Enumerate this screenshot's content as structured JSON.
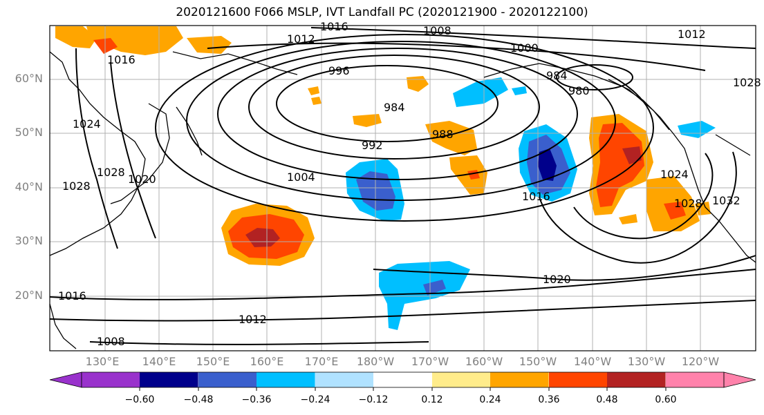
{
  "title": "2020121600 F066 MSLP, IVT Landfall PC (2020121900 - 2020122100)",
  "lat_labels": [
    "60°N",
    "50°N",
    "40°N",
    "30°N",
    "20°N"
  ],
  "lon_labels": [
    "130°E",
    "140°E",
    "150°E",
    "160°E",
    "170°E",
    "180°W",
    "170°W",
    "160°W",
    "150°W",
    "140°W",
    "130°W",
    "120°W"
  ],
  "contour_labels": [
    "1012",
    "1016",
    "1008",
    "1000",
    "1012",
    "996",
    "984",
    "980",
    "984",
    "988",
    "992",
    "1004",
    "1024",
    "1028",
    "1020",
    "1016",
    "1024",
    "1028",
    "1032",
    "1028",
    "1016",
    "1020",
    "1012",
    "1008",
    "1028"
  ],
  "colorbar": {
    "ticks": [
      "−0.60",
      "−0.48",
      "−0.36",
      "−0.24",
      "−0.12",
      "0.12",
      "0.24",
      "0.36",
      "0.48",
      "0.60"
    ],
    "colors": [
      "#9932cc",
      "#00008b",
      "#3a5fcd",
      "#00bfff",
      "#b0e2ff",
      "#ffffff",
      "#ffec8b",
      "#ffa500",
      "#ff4500",
      "#b22222",
      "#ff82ab"
    ]
  }
}
